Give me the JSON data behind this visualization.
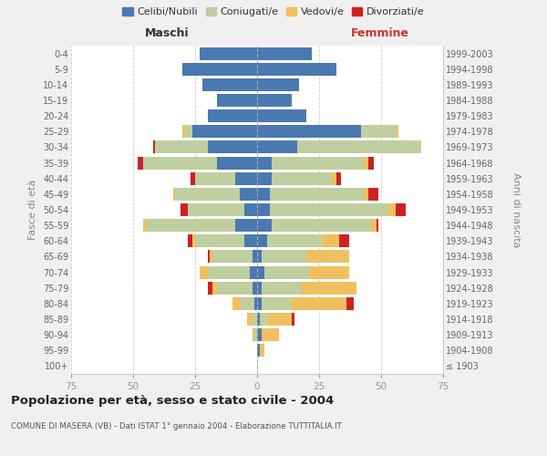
{
  "age_groups": [
    "100+",
    "95-99",
    "90-94",
    "85-89",
    "80-84",
    "75-79",
    "70-74",
    "65-69",
    "60-64",
    "55-59",
    "50-54",
    "45-49",
    "40-44",
    "35-39",
    "30-34",
    "25-29",
    "20-24",
    "15-19",
    "10-14",
    "5-9",
    "0-4"
  ],
  "birth_years": [
    "≤ 1903",
    "1904-1908",
    "1909-1913",
    "1914-1918",
    "1919-1923",
    "1924-1928",
    "1929-1933",
    "1934-1938",
    "1939-1943",
    "1944-1948",
    "1949-1953",
    "1954-1958",
    "1959-1963",
    "1964-1968",
    "1969-1973",
    "1974-1978",
    "1979-1983",
    "1984-1988",
    "1989-1993",
    "1994-1998",
    "1999-2003"
  ],
  "colors": {
    "celibi": "#4a78b0",
    "coniugati": "#bfcfa0",
    "vedovi": "#f0c060",
    "divorziati": "#cc2222"
  },
  "legend_labels": [
    "Celibi/Nubili",
    "Coniugati/e",
    "Vedovi/e",
    "Divorziati/e"
  ],
  "maschi": {
    "celibi": [
      0,
      0,
      0,
      0,
      1,
      2,
      3,
      2,
      5,
      9,
      5,
      7,
      9,
      16,
      20,
      26,
      20,
      16,
      22,
      30,
      23
    ],
    "coniugati": [
      0,
      0,
      1,
      2,
      6,
      14,
      17,
      16,
      20,
      36,
      23,
      26,
      16,
      30,
      21,
      3,
      0,
      0,
      0,
      0,
      0
    ],
    "vedovi": [
      0,
      0,
      1,
      2,
      3,
      2,
      3,
      1,
      1,
      1,
      0,
      1,
      0,
      0,
      0,
      1,
      0,
      0,
      0,
      0,
      0
    ],
    "divorziati": [
      0,
      0,
      0,
      0,
      0,
      2,
      0,
      1,
      2,
      0,
      3,
      0,
      2,
      2,
      1,
      0,
      0,
      0,
      0,
      0,
      0
    ]
  },
  "femmine": {
    "nubili": [
      0,
      1,
      2,
      1,
      2,
      2,
      3,
      2,
      4,
      6,
      5,
      5,
      6,
      6,
      16,
      42,
      20,
      14,
      17,
      32,
      22
    ],
    "coniugate": [
      0,
      0,
      0,
      3,
      12,
      16,
      18,
      18,
      22,
      40,
      48,
      38,
      24,
      37,
      50,
      14,
      0,
      0,
      0,
      0,
      0
    ],
    "vedove": [
      0,
      2,
      7,
      10,
      22,
      22,
      16,
      17,
      7,
      2,
      3,
      2,
      2,
      2,
      0,
      1,
      0,
      0,
      0,
      0,
      0
    ],
    "divorziate": [
      0,
      0,
      0,
      1,
      3,
      0,
      0,
      0,
      4,
      1,
      4,
      4,
      2,
      2,
      0,
      0,
      0,
      0,
      0,
      0,
      0
    ]
  },
  "title": "Popolazione per età, sesso e stato civile - 2004",
  "subtitle": "COMUNE DI MASERA (VB) - Dati ISTAT 1° gennaio 2004 - Elaborazione TUTTITALIA.IT",
  "xlabel_left": "Maschi",
  "xlabel_right": "Femmine",
  "ylabel_left": "Fasce di età",
  "ylabel_right": "Anni di nascita",
  "xlim": 75,
  "background_color": "#f0f0f0",
  "plot_bg": "#ffffff"
}
